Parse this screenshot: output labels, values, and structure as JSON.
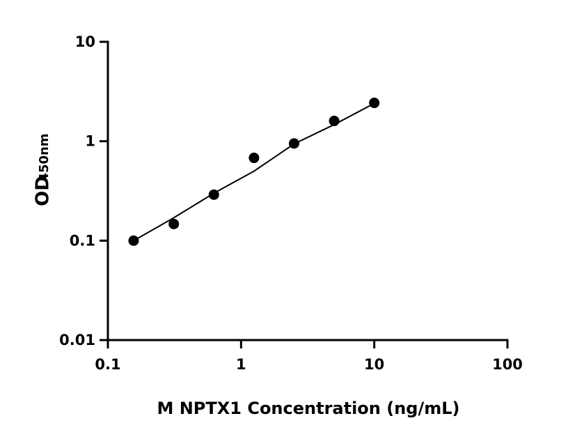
{
  "chart_data": {
    "type": "scatter",
    "x_label": "M NPTX1 Concentration (ng/mL)",
    "y_label": "OD",
    "y_label_subscript": "450nm",
    "x_scale": "log",
    "y_scale": "log",
    "xlim": [
      0.1,
      100
    ],
    "xticks": [
      0.1,
      1,
      10,
      100
    ],
    "ylim": [
      0.01,
      10
    ],
    "yticks": [
      0.01,
      0.1,
      1,
      10
    ],
    "color": "#000000",
    "series": [
      {
        "style": "marker",
        "x": [
          0.156,
          0.3125,
          0.625,
          1.25,
          2.5,
          5,
          10
        ],
        "values": [
          0.1,
          0.147,
          0.29,
          0.68,
          0.95,
          1.6,
          2.43
        ]
      },
      {
        "style": "line",
        "x": [
          0.156,
          0.3125,
          0.625,
          1.25,
          2.5,
          5,
          10
        ],
        "values": [
          0.1,
          0.17,
          0.3,
          0.5,
          0.94,
          1.47,
          2.4
        ]
      }
    ]
  }
}
